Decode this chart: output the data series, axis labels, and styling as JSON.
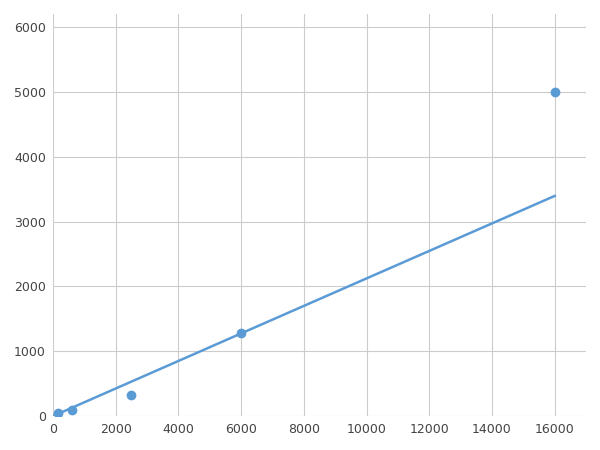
{
  "x": [
    156.25,
    625,
    2500,
    6000,
    16000
  ],
  "y": [
    50,
    100,
    320,
    1280,
    5000
  ],
  "line_color": "#5B9BD5",
  "marker_color": "#5B9BD5",
  "marker_size": 6,
  "line_width": 1.8,
  "xlim": [
    0,
    17000
  ],
  "ylim": [
    0,
    6200
  ],
  "xticks": [
    0,
    2000,
    4000,
    6000,
    8000,
    10000,
    12000,
    14000,
    16000
  ],
  "yticks": [
    0,
    1000,
    2000,
    3000,
    4000,
    5000,
    6000
  ],
  "grid_color": "#cccccc",
  "background_color": "#ffffff",
  "spine_color": "#cccccc"
}
